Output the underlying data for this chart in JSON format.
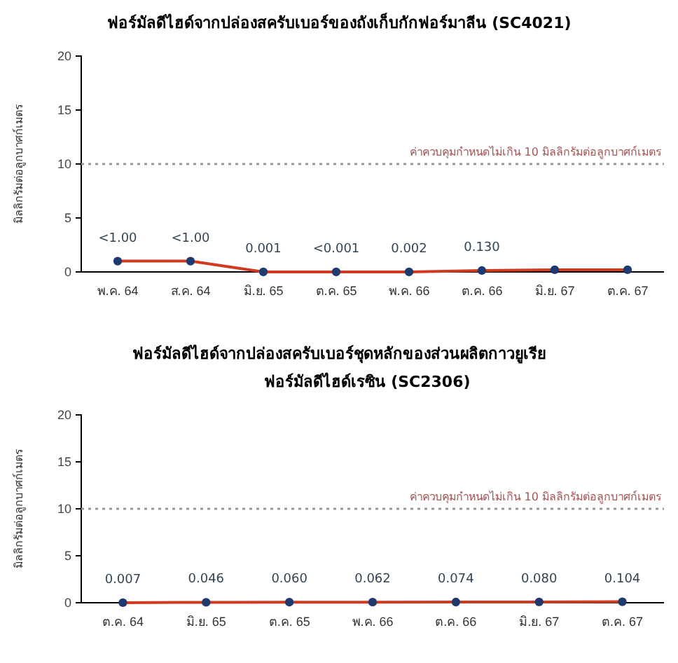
{
  "chart_data": [
    {
      "type": "line",
      "title": "ฟอร์มัลดีไฮด์จากปล่องสครับเบอร์ของถังเก็บกักฟอร์มาลีน (SC4021)",
      "ylabel": "มิลลิกรัมต่อลูกบาศก์เมตร",
      "categories": [
        "พ.ค. 64",
        "ส.ค. 64",
        "มิ.ย. 65",
        "ต.ค. 65",
        "พ.ค. 66",
        "ต.ค. 66",
        "มิ.ย. 67",
        "ต.ค. 67"
      ],
      "series": [
        {
          "color": "#d03a1e",
          "values": [
            1,
            1,
            0.001,
            0.001,
            0.002,
            0.13,
            0.2,
            0.2
          ],
          "value_labels": [
            "<1.00",
            "<1.00",
            "0.001",
            "<0.001",
            "0.002",
            "0.130",
            null,
            null
          ]
        }
      ],
      "ylim": [
        0,
        20
      ],
      "yticks": [
        0,
        5,
        10,
        15,
        20
      ],
      "marker": "circle",
      "ref_lines": [
        {
          "axis": "y",
          "value": 10,
          "label": "ค่าควบคุมกำหนดไม่เกิน 10 มิลลิกรัมต่อลูกบาศก์เมตร",
          "color": "#999999",
          "line_style": "dotted"
        }
      ]
    },
    {
      "type": "line",
      "title": "ฟอร์มัลดีไฮด์จากปล่องสครับเบอร์ชุดหลักของส่วนผลิตกาวยูเรีย",
      "subtitle": "ฟอร์มัลดีไฮด์เรซิน (SC2306)",
      "ylabel": "มิลลิกรัมต่อลูกบาศก์เมตร",
      "categories": [
        "ต.ค. 64",
        "มิ.ย. 65",
        "ต.ค. 65",
        "พ.ค. 66",
        "ต.ค. 66",
        "มิ.ย. 67",
        "ต.ค. 67"
      ],
      "series": [
        {
          "color": "#d03a1e",
          "values": [
            0.007,
            0.046,
            0.06,
            0.062,
            0.074,
            0.08,
            0.104
          ],
          "value_labels": [
            "0.007",
            "0.046",
            "0.060",
            "0.062",
            "0.074",
            "0.080",
            "0.104"
          ]
        }
      ],
      "ylim": [
        0,
        20
      ],
      "yticks": [
        0,
        5,
        10,
        15,
        20
      ],
      "marker": "circle",
      "ref_lines": [
        {
          "axis": "y",
          "value": 10,
          "label": "ค่าควบคุมกำหนดไม่เกิน 10 มิลลิกรัมต่อลูกบาศก์เมตร",
          "color": "#999999",
          "line_style": "dotted"
        }
      ]
    }
  ]
}
